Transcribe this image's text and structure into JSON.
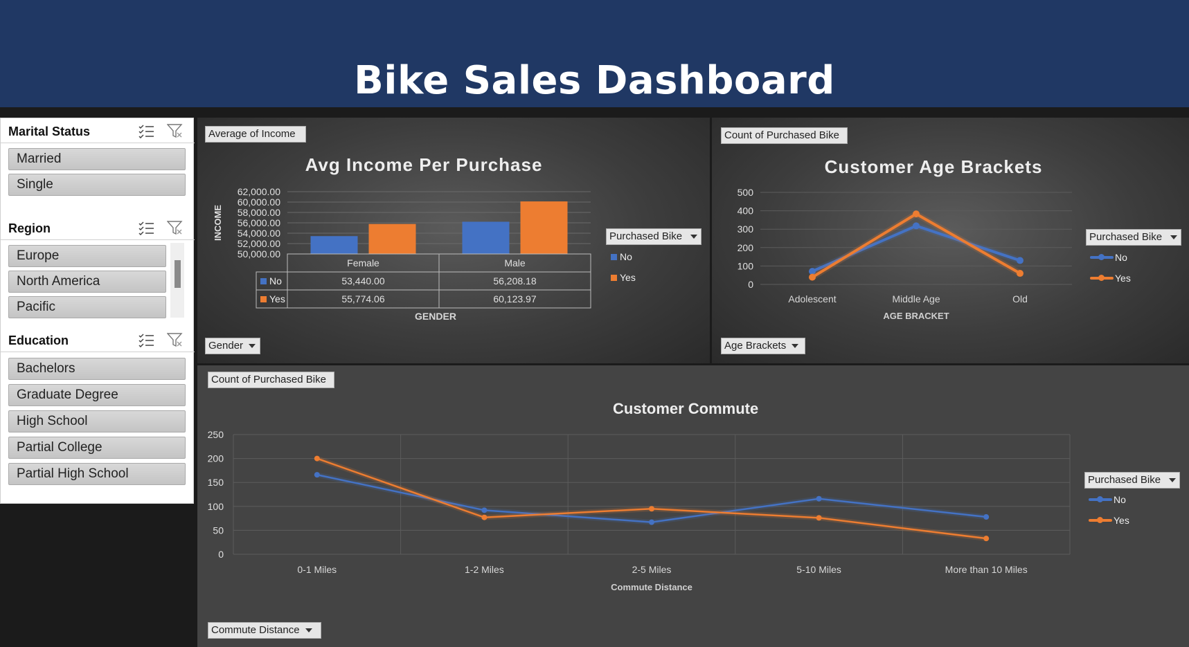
{
  "header": {
    "title": "Bike Sales Dashboard"
  },
  "colors": {
    "header_bg": "#203864",
    "no_series": "#4472C4",
    "yes_series": "#ED7D31"
  },
  "slicers": {
    "marital": {
      "title": "Marital Status",
      "items": [
        "Married",
        "Single"
      ]
    },
    "region": {
      "title": "Region",
      "items": [
        "Europe",
        "North America",
        "Pacific"
      ]
    },
    "education": {
      "title": "Education",
      "items": [
        "Bachelors",
        "Graduate Degree",
        "High School",
        "Partial College",
        "Partial High School"
      ]
    },
    "icons": [
      "multi-select-icon",
      "clear-filter-icon"
    ]
  },
  "income_chart": {
    "value_button": "Average of Income",
    "axis_button": "Gender",
    "legend_button": "Purchased Bike"
  },
  "age_chart": {
    "value_button": "Count of Purchased Bike",
    "axis_button": "Age Brackets",
    "legend_button": "Purchased Bike"
  },
  "commute_chart": {
    "value_button": "Count of Purchased Bike",
    "axis_button": "Commute Distance",
    "legend_button": "Purchased Bike"
  },
  "chart_data": [
    {
      "type": "bar",
      "title": "Avg Income Per Purchase",
      "xlabel": "GENDER",
      "ylabel": "INCOME",
      "categories": [
        "Female",
        "Male"
      ],
      "series": [
        {
          "name": "No",
          "values": [
            53440.0,
            56208.18
          ],
          "labels": [
            "53,440.00",
            "56,208.18"
          ]
        },
        {
          "name": "Yes",
          "values": [
            55774.06,
            60123.97
          ],
          "labels": [
            "55,774.06",
            "60,123.97"
          ]
        }
      ],
      "ylim": [
        50000,
        62000
      ],
      "yticks": [
        "62,000.00",
        "60,000.00",
        "58,000.00",
        "56,000.00",
        "54,000.00",
        "52,000.00",
        "50,000.00"
      ],
      "legend": "right",
      "data_table": true
    },
    {
      "type": "line",
      "title": "Customer Age Brackets",
      "xlabel": "AGE BRACKET",
      "ylabel": "",
      "categories": [
        "Adolescent",
        "Middle Age",
        "Old"
      ],
      "series": [
        {
          "name": "No",
          "values": [
            71,
            318,
            130
          ]
        },
        {
          "name": "Yes",
          "values": [
            39,
            383,
            60
          ]
        }
      ],
      "ylim": [
        0,
        500
      ],
      "yticks": [
        "500",
        "400",
        "300",
        "200",
        "100",
        "0"
      ],
      "legend": "right",
      "grid": true
    },
    {
      "type": "line",
      "title": "Customer Commute",
      "xlabel": "Commute Distance",
      "ylabel": "",
      "categories": [
        "0-1 Miles",
        "1-2 Miles",
        "2-5 Miles",
        "5-10 Miles",
        "More than 10 Miles"
      ],
      "series": [
        {
          "name": "No",
          "values": [
            166,
            92,
            67,
            116,
            78
          ]
        },
        {
          "name": "Yes",
          "values": [
            200,
            77,
            95,
            76,
            33
          ]
        }
      ],
      "ylim": [
        0,
        250
      ],
      "yticks": [
        "250",
        "200",
        "150",
        "100",
        "50",
        "0"
      ],
      "legend": "right",
      "grid": true
    }
  ]
}
